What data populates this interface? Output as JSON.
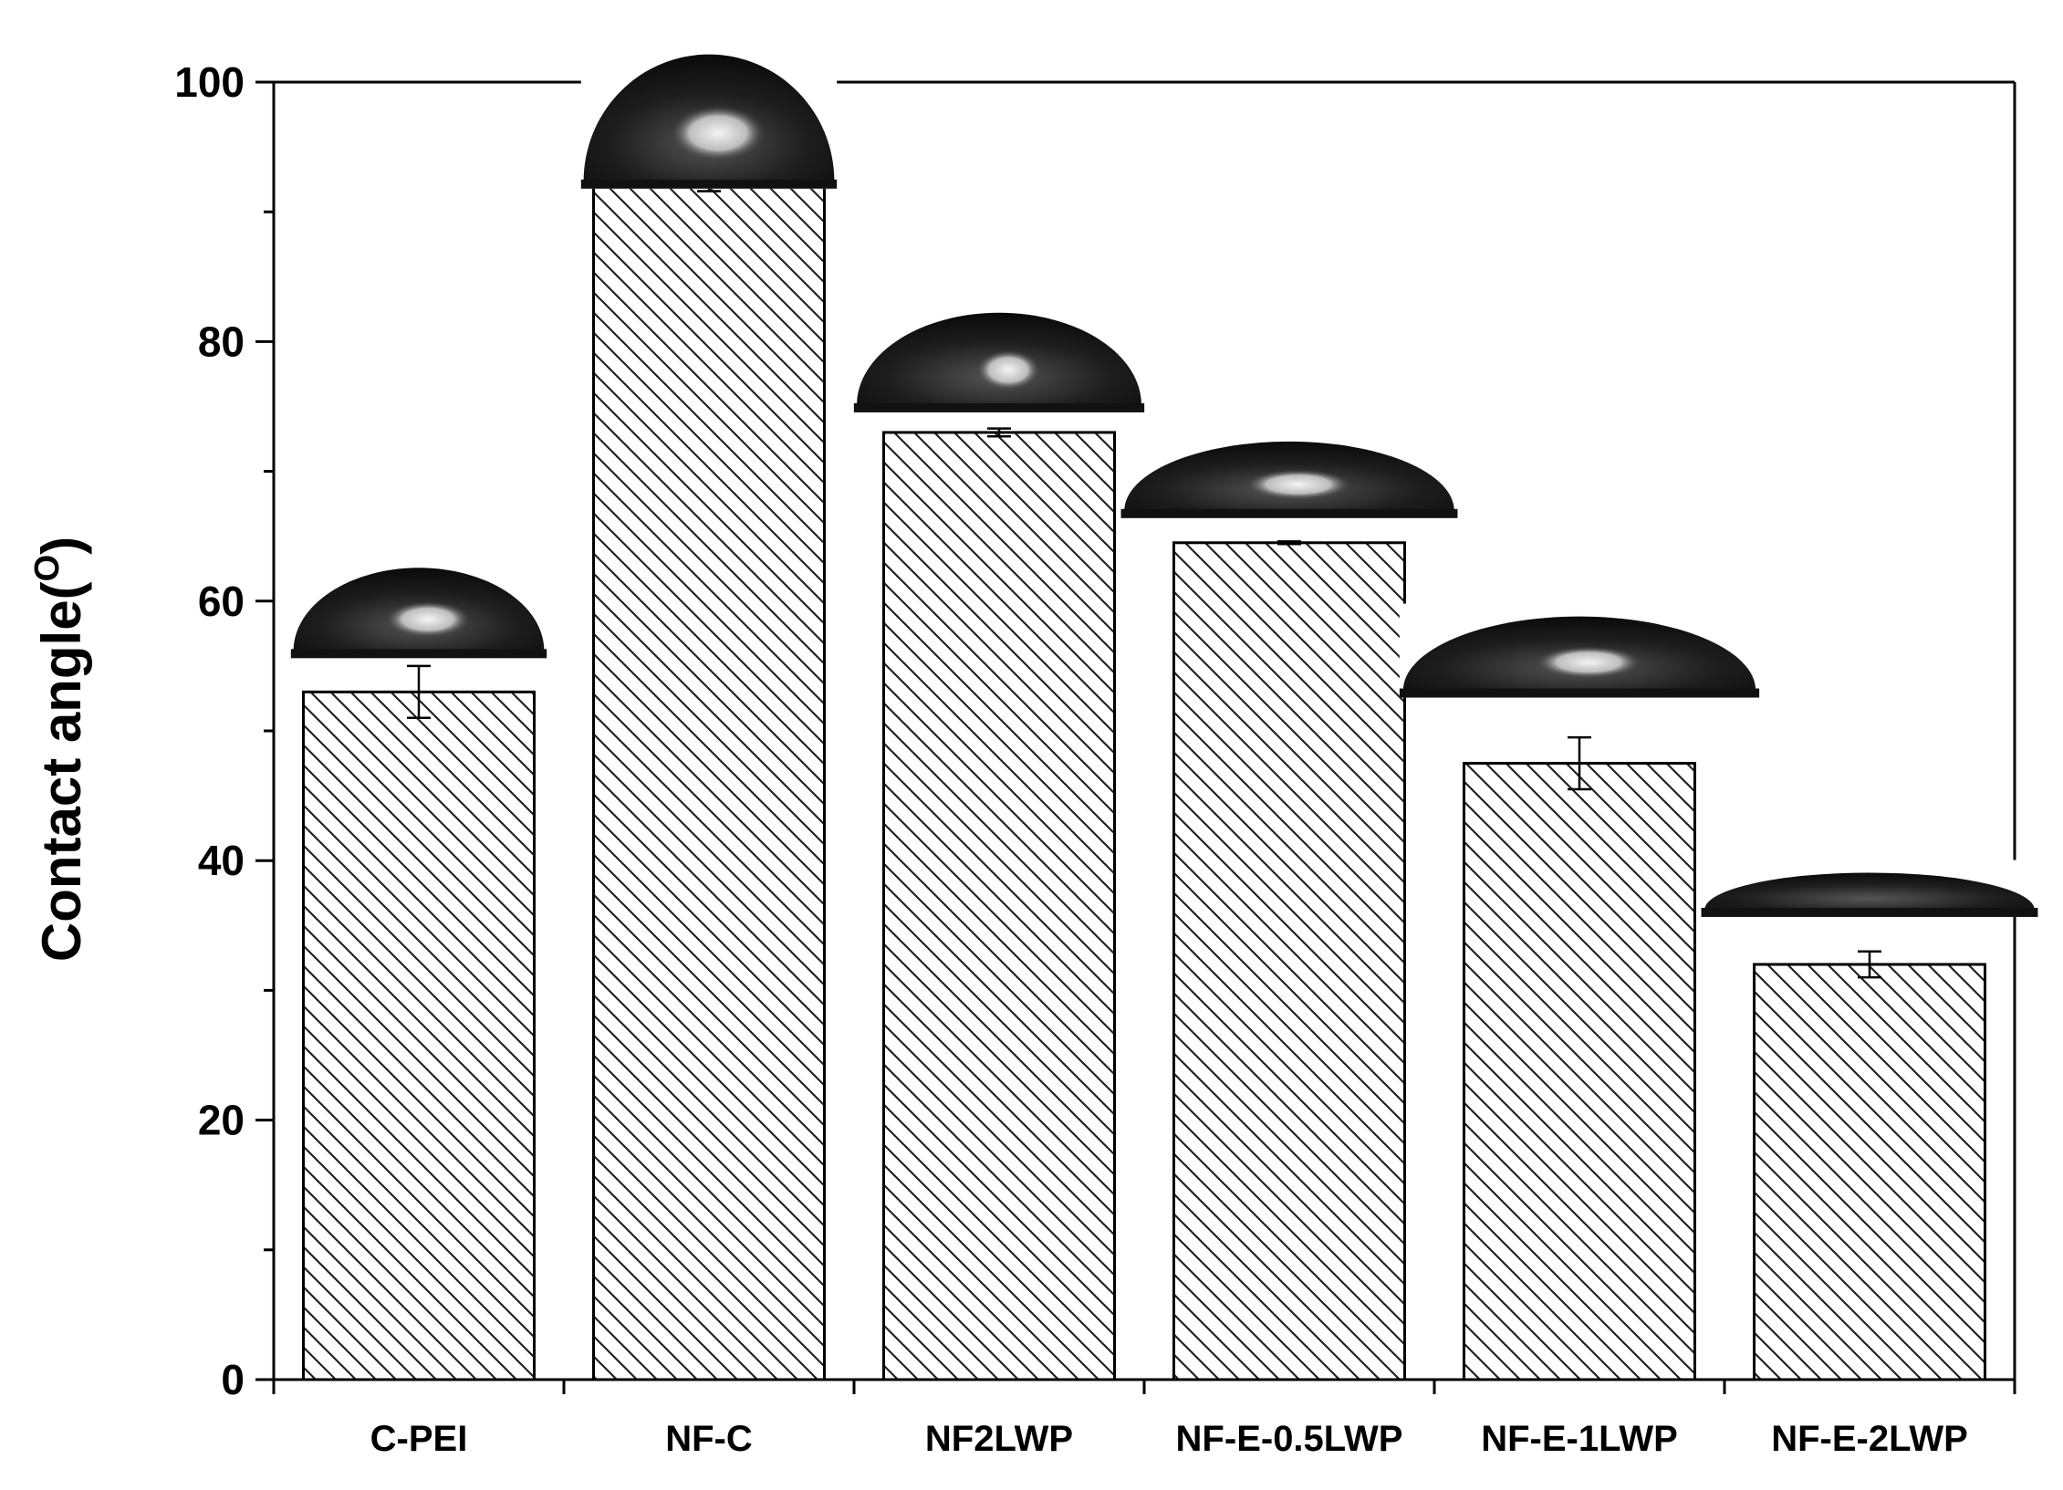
{
  "chart_data": {
    "type": "bar",
    "title": "",
    "xlabel": "",
    "ylabel": "Contact angle(",
    "ylabel_superscript": "O",
    "ylabel_close": ")",
    "categories": [
      "C-PEI",
      "NF-C",
      "NF2LWP",
      "NF-E-0.5LWP",
      "NF-E-1LWP",
      "NF-E-2LWP"
    ],
    "values": [
      53.0,
      92.0,
      73.0,
      64.5,
      47.5,
      32.0
    ],
    "errors": [
      2.0,
      0.4,
      0.3,
      0.1,
      2.0,
      1.0
    ],
    "ylim": [
      0,
      100
    ],
    "yticks": [
      0,
      20,
      40,
      60,
      80,
      100
    ],
    "ytick_labels": [
      "0",
      "20",
      "40",
      "60",
      "80",
      "100"
    ],
    "bar_fill": "hatched",
    "bar_stroke": "#000000",
    "insets": "contact-angle droplet image above each bar",
    "grid": false,
    "legend": "none"
  },
  "colors": {
    "axis": "#000000",
    "hatch": "#222222",
    "background": "#ffffff",
    "droplet": "#141414",
    "droplet_highlight": "#e6e6e6"
  }
}
